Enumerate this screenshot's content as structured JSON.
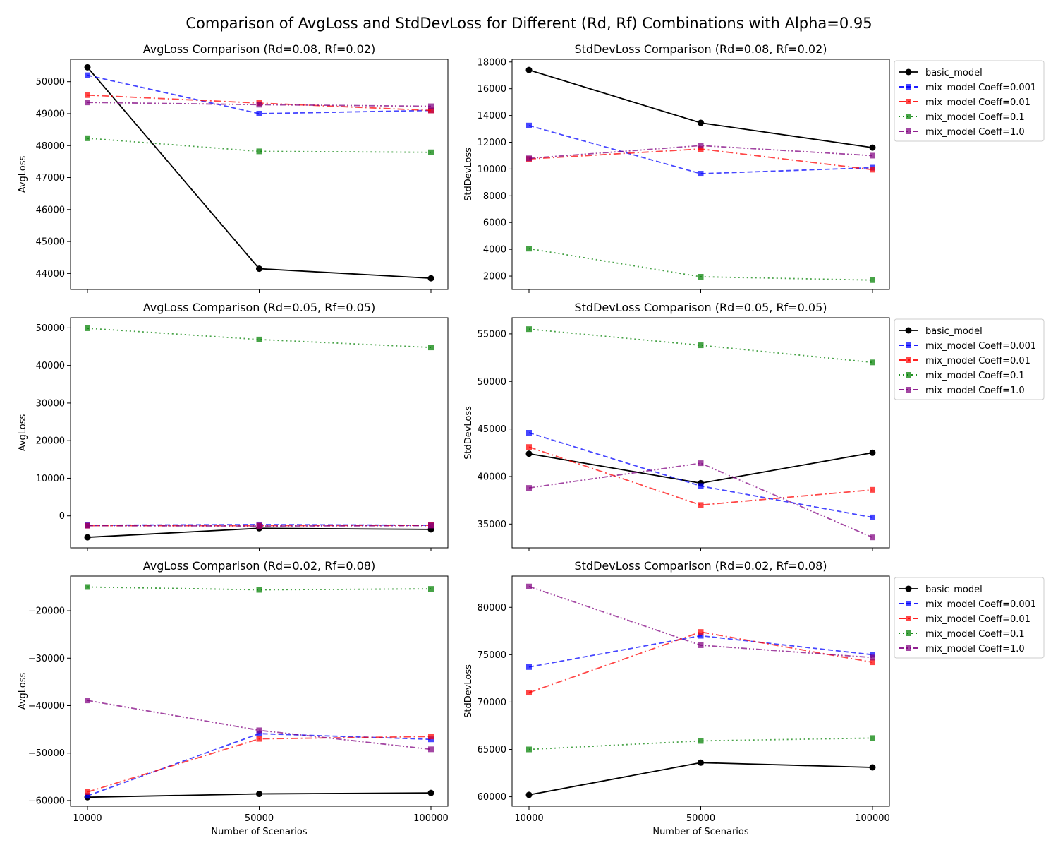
{
  "figure": {
    "title": "Comparison of AvgLoss and StdDevLoss for Different (Rd, Rf) Combinations with Alpha=0.95"
  },
  "series_styles": [
    {
      "name": "basic_model",
      "color": "#000000",
      "marker": "circle",
      "dash": "solid"
    },
    {
      "name": "mix_model Coeff=0.001",
      "color": "#0000ff",
      "marker": "square",
      "dash": "dashed"
    },
    {
      "name": "mix_model Coeff=0.01",
      "color": "#ff0000",
      "marker": "square",
      "dash": "dashdot"
    },
    {
      "name": "mix_model Coeff=0.1",
      "color": "#008000",
      "marker": "square",
      "dash": "dotted"
    },
    {
      "name": "mix_model Coeff=1.0",
      "color": "#800080",
      "marker": "square",
      "dash": "dashdotdot"
    }
  ],
  "chart_data": [
    {
      "type": "line",
      "title": "AvgLoss Comparison (Rd=0.08, Rf=0.02)",
      "xlabel": "",
      "ylabel": "AvgLoss",
      "categories": [
        "10000",
        "50000",
        "100000"
      ],
      "ylim": [
        43500,
        50700
      ],
      "yticks": [
        44000,
        45000,
        46000,
        47000,
        48000,
        49000,
        50000
      ],
      "yticklabels": [
        "44000",
        "45000",
        "46000",
        "47000",
        "48000",
        "49000",
        "50000"
      ],
      "show_xticklabels": false,
      "series": [
        {
          "name": "basic_model",
          "values": [
            50450,
            44150,
            43850
          ]
        },
        {
          "name": "mix_model Coeff=0.001",
          "values": [
            50200,
            49000,
            49100
          ]
        },
        {
          "name": "mix_model Coeff=0.01",
          "values": [
            49580,
            49330,
            49100
          ]
        },
        {
          "name": "mix_model Coeff=0.1",
          "values": [
            48230,
            47820,
            47790
          ]
        },
        {
          "name": "mix_model Coeff=1.0",
          "values": [
            49350,
            49280,
            49230
          ]
        }
      ]
    },
    {
      "type": "line",
      "title": "StdDevLoss Comparison (Rd=0.08, Rf=0.02)",
      "xlabel": "",
      "ylabel": "StdDevLoss",
      "categories": [
        "10000",
        "50000",
        "100000"
      ],
      "ylim": [
        1000,
        18200
      ],
      "yticks": [
        2000,
        4000,
        6000,
        8000,
        10000,
        12000,
        14000,
        16000,
        18000
      ],
      "yticklabels": [
        "2000",
        "4000",
        "6000",
        "8000",
        "10000",
        "12000",
        "14000",
        "16000",
        "18000"
      ],
      "show_xticklabels": false,
      "legend": "outside-right",
      "series": [
        {
          "name": "basic_model",
          "values": [
            17400,
            13450,
            11600
          ]
        },
        {
          "name": "mix_model Coeff=0.001",
          "values": [
            13250,
            9650,
            10100
          ]
        },
        {
          "name": "mix_model Coeff=0.01",
          "values": [
            10750,
            11500,
            9950
          ]
        },
        {
          "name": "mix_model Coeff=0.1",
          "values": [
            4050,
            1950,
            1700
          ]
        },
        {
          "name": "mix_model Coeff=1.0",
          "values": [
            10800,
            11750,
            11000
          ]
        }
      ]
    },
    {
      "type": "line",
      "title": "AvgLoss Comparison (Rd=0.05, Rf=0.05)",
      "xlabel": "",
      "ylabel": "AvgLoss",
      "categories": [
        "10000",
        "50000",
        "100000"
      ],
      "ylim": [
        -8500,
        52700
      ],
      "yticks": [
        0,
        10000,
        20000,
        30000,
        40000,
        50000
      ],
      "yticklabels": [
        "0",
        "10000",
        "20000",
        "30000",
        "40000",
        "50000"
      ],
      "show_xticklabels": false,
      "series": [
        {
          "name": "basic_model",
          "values": [
            -5700,
            -3300,
            -3600
          ]
        },
        {
          "name": "mix_model Coeff=0.001",
          "values": [
            -2500,
            -2300,
            -2500
          ]
        },
        {
          "name": "mix_model Coeff=0.01",
          "values": [
            -2600,
            -2600,
            -2500
          ]
        },
        {
          "name": "mix_model Coeff=0.1",
          "values": [
            49900,
            46900,
            44800
          ]
        },
        {
          "name": "mix_model Coeff=1.0",
          "values": [
            -2600,
            -2700,
            -2600
          ]
        }
      ]
    },
    {
      "type": "line",
      "title": "StdDevLoss Comparison (Rd=0.05, Rf=0.05)",
      "xlabel": "",
      "ylabel": "StdDevLoss",
      "categories": [
        "10000",
        "50000",
        "100000"
      ],
      "ylim": [
        32500,
        56700
      ],
      "yticks": [
        35000,
        40000,
        45000,
        50000,
        55000
      ],
      "yticklabels": [
        "35000",
        "40000",
        "45000",
        "50000",
        "55000"
      ],
      "show_xticklabels": false,
      "legend": "outside-right",
      "series": [
        {
          "name": "basic_model",
          "values": [
            42400,
            39300,
            42500
          ]
        },
        {
          "name": "mix_model Coeff=0.001",
          "values": [
            44600,
            39000,
            35700
          ]
        },
        {
          "name": "mix_model Coeff=0.01",
          "values": [
            43100,
            37000,
            38600
          ]
        },
        {
          "name": "mix_model Coeff=0.1",
          "values": [
            55500,
            53800,
            52000
          ]
        },
        {
          "name": "mix_model Coeff=1.0",
          "values": [
            38800,
            41400,
            33600
          ]
        }
      ]
    },
    {
      "type": "line",
      "title": "AvgLoss Comparison (Rd=0.02, Rf=0.08)",
      "xlabel": "Number of Scenarios",
      "ylabel": "AvgLoss",
      "categories": [
        "10000",
        "50000",
        "100000"
      ],
      "ylim": [
        -61200,
        -12700
      ],
      "yticks": [
        -60000,
        -50000,
        -40000,
        -30000,
        -20000
      ],
      "yticklabels": [
        "−60000",
        "−50000",
        "−40000",
        "−30000",
        "−20000"
      ],
      "show_xticklabels": true,
      "series": [
        {
          "name": "basic_model",
          "values": [
            -59300,
            -58600,
            -58400
          ]
        },
        {
          "name": "mix_model Coeff=0.001",
          "values": [
            -59000,
            -45900,
            -47100
          ]
        },
        {
          "name": "mix_model Coeff=0.01",
          "values": [
            -58200,
            -47000,
            -46500
          ]
        },
        {
          "name": "mix_model Coeff=0.1",
          "values": [
            -15000,
            -15600,
            -15400
          ]
        },
        {
          "name": "mix_model Coeff=1.0",
          "values": [
            -38900,
            -45200,
            -49200
          ]
        }
      ]
    },
    {
      "type": "line",
      "title": "StdDevLoss Comparison (Rd=0.02, Rf=0.08)",
      "xlabel": "Number of Scenarios",
      "ylabel": "StdDevLoss",
      "categories": [
        "10000",
        "50000",
        "100000"
      ],
      "ylim": [
        59000,
        83300
      ],
      "yticks": [
        60000,
        65000,
        70000,
        75000,
        80000
      ],
      "yticklabels": [
        "60000",
        "65000",
        "70000",
        "75000",
        "80000"
      ],
      "show_xticklabels": true,
      "legend": "outside-right",
      "series": [
        {
          "name": "basic_model",
          "values": [
            60200,
            63600,
            63100
          ]
        },
        {
          "name": "mix_model Coeff=0.001",
          "values": [
            73700,
            77000,
            75000
          ]
        },
        {
          "name": "mix_model Coeff=0.01",
          "values": [
            71000,
            77400,
            74200
          ]
        },
        {
          "name": "mix_model Coeff=0.1",
          "values": [
            65000,
            65900,
            66200
          ]
        },
        {
          "name": "mix_model Coeff=1.0",
          "values": [
            82200,
            76000,
            74700
          ]
        }
      ]
    }
  ]
}
